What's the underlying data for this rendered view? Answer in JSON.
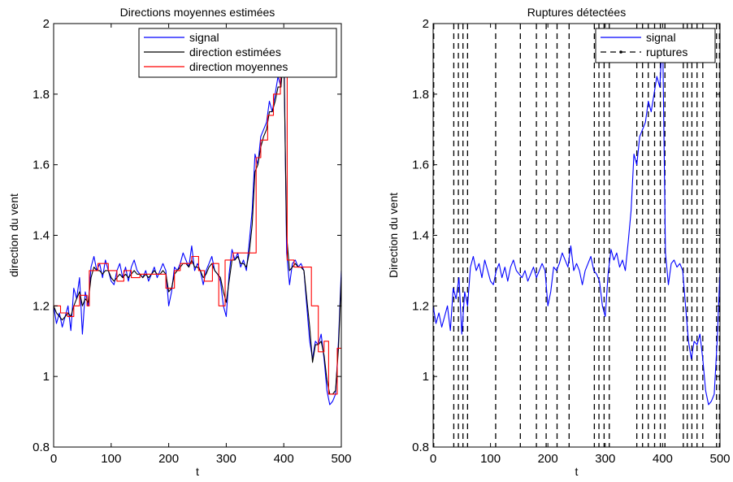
{
  "chart_data": [
    {
      "type": "line",
      "title": "Directions moyennes estimées",
      "xlabel": "t",
      "ylabel": "direction du vent",
      "xlim": [
        0,
        500
      ],
      "ylim": [
        0.8,
        2
      ],
      "xticks": [
        0,
        100,
        200,
        300,
        400,
        500
      ],
      "yticks": [
        0.8,
        1,
        1.2,
        1.4,
        1.6,
        1.8,
        2
      ],
      "xtick_labels": [
        "0",
        "100",
        "200",
        "300",
        "400",
        "500"
      ],
      "ytick_labels": [
        "0.8",
        "1",
        "1.2",
        "1.4",
        "1.6",
        "1.8",
        "2"
      ],
      "legend_position": "top-right",
      "series": [
        {
          "name": "signal",
          "color": "#0000ff",
          "style": "solid",
          "x": [
            0,
            5,
            10,
            15,
            20,
            25,
            30,
            35,
            40,
            45,
            50,
            55,
            60,
            65,
            70,
            75,
            80,
            85,
            90,
            95,
            100,
            105,
            110,
            115,
            120,
            125,
            130,
            135,
            140,
            145,
            150,
            155,
            160,
            165,
            170,
            175,
            180,
            185,
            190,
            195,
            200,
            205,
            210,
            215,
            220,
            225,
            230,
            235,
            240,
            245,
            250,
            255,
            260,
            265,
            270,
            275,
            280,
            285,
            290,
            295,
            300,
            305,
            310,
            315,
            320,
            325,
            330,
            335,
            340,
            345,
            350,
            355,
            360,
            365,
            370,
            375,
            380,
            385,
            390,
            395,
            400,
            405,
            410,
            415,
            420,
            425,
            430,
            435,
            440,
            445,
            450,
            455,
            460,
            465,
            470,
            475,
            480,
            485,
            490,
            495,
            500
          ],
          "values": [
            1.2,
            1.15,
            1.18,
            1.14,
            1.17,
            1.2,
            1.13,
            1.25,
            1.22,
            1.28,
            1.12,
            1.24,
            1.2,
            1.31,
            1.34,
            1.3,
            1.32,
            1.28,
            1.33,
            1.3,
            1.27,
            1.26,
            1.3,
            1.32,
            1.28,
            1.31,
            1.27,
            1.31,
            1.33,
            1.3,
            1.29,
            1.28,
            1.3,
            1.27,
            1.29,
            1.31,
            1.28,
            1.3,
            1.32,
            1.3,
            1.2,
            1.24,
            1.31,
            1.3,
            1.32,
            1.35,
            1.33,
            1.31,
            1.37,
            1.3,
            1.32,
            1.3,
            1.26,
            1.3,
            1.32,
            1.34,
            1.3,
            1.29,
            1.27,
            1.2,
            1.17,
            1.29,
            1.36,
            1.33,
            1.35,
            1.31,
            1.33,
            1.3,
            1.38,
            1.47,
            1.63,
            1.6,
            1.68,
            1.7,
            1.72,
            1.78,
            1.75,
            1.8,
            1.85,
            1.82,
            1.97,
            1.35,
            1.26,
            1.32,
            1.33,
            1.31,
            1.32,
            1.3,
            1.2,
            1.1,
            1.05,
            1.1,
            1.09,
            1.12,
            1.05,
            0.96,
            0.92,
            0.93,
            0.95,
            1.1,
            1.3
          ]
        },
        {
          "name": "direction estimées",
          "color": "#000000",
          "style": "solid",
          "x": [
            0,
            5,
            10,
            15,
            20,
            25,
            30,
            35,
            40,
            45,
            50,
            55,
            60,
            65,
            70,
            75,
            80,
            85,
            90,
            95,
            100,
            105,
            110,
            115,
            120,
            125,
            130,
            135,
            140,
            145,
            150,
            155,
            160,
            165,
            170,
            175,
            180,
            185,
            190,
            195,
            200,
            205,
            210,
            215,
            220,
            225,
            230,
            235,
            240,
            245,
            250,
            255,
            260,
            265,
            270,
            275,
            280,
            285,
            290,
            295,
            300,
            305,
            310,
            315,
            320,
            325,
            330,
            335,
            340,
            345,
            350,
            355,
            360,
            365,
            370,
            375,
            380,
            385,
            390,
            395,
            400,
            405,
            410,
            415,
            420,
            425,
            430,
            435,
            440,
            445,
            450,
            455,
            460,
            465,
            470,
            475,
            480,
            485,
            490,
            495,
            500
          ],
          "values": [
            1.2,
            1.18,
            1.17,
            1.16,
            1.17,
            1.18,
            1.17,
            1.2,
            1.22,
            1.24,
            1.2,
            1.22,
            1.21,
            1.28,
            1.31,
            1.3,
            1.3,
            1.29,
            1.3,
            1.3,
            1.28,
            1.27,
            1.28,
            1.29,
            1.28,
            1.29,
            1.28,
            1.29,
            1.3,
            1.29,
            1.29,
            1.28,
            1.29,
            1.28,
            1.29,
            1.3,
            1.29,
            1.29,
            1.3,
            1.29,
            1.24,
            1.25,
            1.29,
            1.3,
            1.31,
            1.32,
            1.32,
            1.31,
            1.33,
            1.31,
            1.31,
            1.3,
            1.28,
            1.29,
            1.31,
            1.32,
            1.3,
            1.29,
            1.28,
            1.24,
            1.21,
            1.27,
            1.33,
            1.33,
            1.34,
            1.32,
            1.32,
            1.31,
            1.35,
            1.43,
            1.58,
            1.6,
            1.65,
            1.68,
            1.7,
            1.75,
            1.75,
            1.78,
            1.82,
            1.82,
            1.92,
            1.4,
            1.3,
            1.31,
            1.32,
            1.31,
            1.31,
            1.3,
            1.22,
            1.14,
            1.04,
            1.09,
            1.09,
            1.1,
            1.06,
            0.99,
            0.95,
            0.95,
            0.96,
            1.08,
            1.28
          ]
        },
        {
          "name": "direction moyennes",
          "color": "#ff0000",
          "style": "solid",
          "x": [
            0,
            12,
            12,
            24,
            24,
            35,
            35,
            45,
            45,
            58,
            58,
            62,
            62,
            77,
            77,
            95,
            95,
            110,
            110,
            122,
            122,
            135,
            135,
            150,
            150,
            195,
            195,
            210,
            210,
            220,
            220,
            240,
            240,
            252,
            252,
            262,
            262,
            276,
            276,
            287,
            287,
            298,
            298,
            312,
            312,
            352,
            352,
            360,
            360,
            372,
            372,
            382,
            382,
            394,
            394,
            406,
            406,
            418,
            418,
            434,
            434,
            448,
            448,
            460,
            460,
            470,
            470,
            478,
            478,
            493,
            493,
            500
          ],
          "values": [
            1.2,
            1.2,
            1.18,
            1.18,
            1.17,
            1.17,
            1.2,
            1.2,
            1.23,
            1.23,
            1.2,
            1.2,
            1.3,
            1.3,
            1.32,
            1.32,
            1.3,
            1.3,
            1.27,
            1.27,
            1.3,
            1.3,
            1.28,
            1.28,
            1.29,
            1.29,
            1.25,
            1.25,
            1.3,
            1.3,
            1.32,
            1.32,
            1.34,
            1.34,
            1.3,
            1.3,
            1.27,
            1.27,
            1.32,
            1.32,
            1.2,
            1.2,
            1.33,
            1.33,
            1.35,
            1.35,
            1.62,
            1.62,
            1.67,
            1.67,
            1.74,
            1.74,
            1.8,
            1.8,
            1.85,
            1.85,
            1.33,
            1.33,
            1.31,
            1.31,
            1.31,
            1.31,
            1.2,
            1.2,
            1.07,
            1.07,
            1.1,
            1.1,
            0.95,
            0.95,
            1.08,
            1.08
          ]
        }
      ]
    },
    {
      "type": "line",
      "title": "Ruptures détectées",
      "xlabel": "t",
      "ylabel": "Direction du vent",
      "xlim": [
        0,
        500
      ],
      "ylim": [
        0.8,
        2
      ],
      "xticks": [
        0,
        100,
        200,
        300,
        400,
        500
      ],
      "yticks": [
        0.8,
        1,
        1.2,
        1.4,
        1.6,
        1.8,
        2
      ],
      "xtick_labels": [
        "0",
        "100",
        "200",
        "300",
        "400",
        "500"
      ],
      "ytick_labels": [
        "0.8",
        "1",
        "1.2",
        "1.4",
        "1.6",
        "1.8",
        "2"
      ],
      "legend_position": "top-right",
      "series": [
        {
          "name": "signal",
          "color": "#0000ff",
          "style": "solid",
          "x": [
            0,
            5,
            10,
            15,
            20,
            25,
            30,
            35,
            40,
            45,
            50,
            55,
            60,
            65,
            70,
            75,
            80,
            85,
            90,
            95,
            100,
            105,
            110,
            115,
            120,
            125,
            130,
            135,
            140,
            145,
            150,
            155,
            160,
            165,
            170,
            175,
            180,
            185,
            190,
            195,
            200,
            205,
            210,
            215,
            220,
            225,
            230,
            235,
            240,
            245,
            250,
            255,
            260,
            265,
            270,
            275,
            280,
            285,
            290,
            295,
            300,
            305,
            310,
            315,
            320,
            325,
            330,
            335,
            340,
            345,
            350,
            355,
            360,
            365,
            370,
            375,
            380,
            385,
            390,
            395,
            400,
            405,
            410,
            415,
            420,
            425,
            430,
            435,
            440,
            445,
            450,
            455,
            460,
            465,
            470,
            475,
            480,
            485,
            490,
            495,
            500
          ],
          "values": [
            1.2,
            1.15,
            1.18,
            1.14,
            1.17,
            1.2,
            1.13,
            1.25,
            1.22,
            1.28,
            1.12,
            1.24,
            1.2,
            1.31,
            1.34,
            1.3,
            1.32,
            1.28,
            1.33,
            1.3,
            1.27,
            1.26,
            1.3,
            1.32,
            1.28,
            1.31,
            1.27,
            1.31,
            1.33,
            1.3,
            1.29,
            1.28,
            1.3,
            1.27,
            1.29,
            1.31,
            1.28,
            1.3,
            1.32,
            1.3,
            1.2,
            1.24,
            1.31,
            1.3,
            1.32,
            1.35,
            1.33,
            1.31,
            1.37,
            1.3,
            1.32,
            1.3,
            1.26,
            1.3,
            1.32,
            1.34,
            1.3,
            1.29,
            1.27,
            1.2,
            1.17,
            1.29,
            1.36,
            1.33,
            1.35,
            1.31,
            1.33,
            1.3,
            1.38,
            1.47,
            1.63,
            1.6,
            1.68,
            1.7,
            1.72,
            1.78,
            1.75,
            1.8,
            1.85,
            1.82,
            1.97,
            1.35,
            1.26,
            1.32,
            1.33,
            1.31,
            1.32,
            1.3,
            1.2,
            1.1,
            1.05,
            1.1,
            1.09,
            1.12,
            1.05,
            0.96,
            0.92,
            0.93,
            0.95,
            1.1,
            1.3
          ]
        },
        {
          "name": "ruptures",
          "color": "#000000",
          "style": "dashed",
          "x_positions": [
            1,
            36,
            44,
            52,
            60,
            109,
            152,
            180,
            197,
            216,
            237,
            281,
            289,
            298,
            307,
            355,
            365,
            375,
            386,
            396,
            404,
            436,
            443,
            451,
            460,
            470,
            494,
            499
          ]
        }
      ]
    }
  ]
}
